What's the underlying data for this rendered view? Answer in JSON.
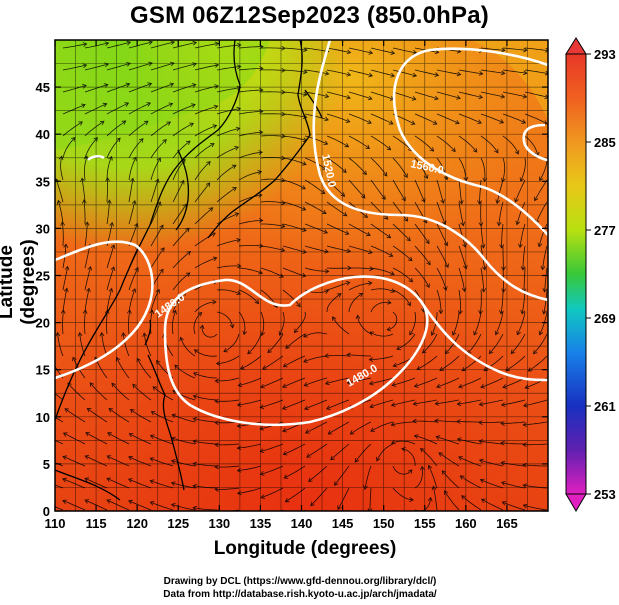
{
  "title": "GSM 06Z12Sep2023 (850.0hPa)",
  "axes": {
    "xlabel": "Longitude (degrees)",
    "ylabel": "Latitude (degrees)",
    "xlim": [
      110,
      170
    ],
    "ylim": [
      0,
      50
    ],
    "xticks": [
      "110",
      "115",
      "120",
      "125",
      "130",
      "135",
      "140",
      "145",
      "150",
      "155",
      "160",
      "165"
    ],
    "yticks": [
      "0",
      "5",
      "10",
      "15",
      "20",
      "25",
      "30",
      "35",
      "40",
      "45"
    ]
  },
  "colorbar": {
    "label_values": [
      "293",
      "285",
      "277",
      "269",
      "261",
      "253"
    ],
    "min": 253,
    "max": 293,
    "colors": [
      "#e020c0",
      "#6020b0",
      "#1028c0",
      "#1880e8",
      "#10c8c8",
      "#18c060",
      "#60d018",
      "#b8e010",
      "#f0c010",
      "#f08018",
      "#e84018",
      "#e82010"
    ]
  },
  "contours": [
    {
      "label": "1560.0"
    },
    {
      "label": "1520.0"
    },
    {
      "label": "1480.0"
    },
    {
      "label": "1480.0"
    }
  ],
  "credits": {
    "line1": "Drawing by DCL (https://www.gfd-dennou.org/library/dcl/)",
    "line2": "Data from http://database.rish.kyoto-u.ac.jp/arch/jmadata/"
  }
}
